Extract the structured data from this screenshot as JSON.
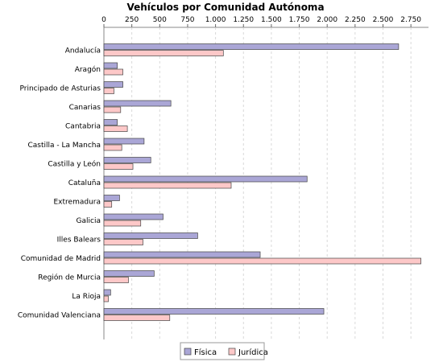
{
  "chart_data": {
    "type": "bar",
    "orientation": "horizontal",
    "title": "Vehículos por Comunidad Autónoma",
    "categories": [
      "Andalucía",
      "Aragón",
      "Principado de Asturias",
      "Canarias",
      "Cantabria",
      "Castilla - La Mancha",
      "Castilla y León",
      "Cataluña",
      "Extremadura",
      "Galicia",
      "Illes Balears",
      "Comunidad de Madrid",
      "Región de Murcia",
      "La Rioja",
      "Comunidad Valenciana"
    ],
    "series": [
      {
        "name": "Física",
        "color": "#aaa6d6",
        "values": [
          2640,
          120,
          170,
          600,
          120,
          360,
          420,
          1820,
          140,
          530,
          840,
          1400,
          450,
          60,
          1970
        ]
      },
      {
        "name": "Jurídica",
        "color": "#fdc8c8",
        "values": [
          1070,
          170,
          90,
          150,
          210,
          160,
          260,
          1140,
          70,
          330,
          350,
          2840,
          220,
          40,
          590
        ]
      }
    ],
    "xlim": [
      0,
      2900
    ],
    "ticks": [
      "0",
      "250",
      "500",
      "750",
      "1.000",
      "1.250",
      "1.500",
      "1.750",
      "2.000",
      "2.250",
      "2.500",
      "2.750"
    ],
    "tick_values": [
      0,
      250,
      500,
      750,
      1000,
      1250,
      1500,
      1750,
      2000,
      2250,
      2500,
      2750
    ],
    "xaxis_position": "top",
    "grid": true,
    "legend": "bottom-center",
    "bar_border": "#444444",
    "grid_color": "#d9d9d9"
  }
}
